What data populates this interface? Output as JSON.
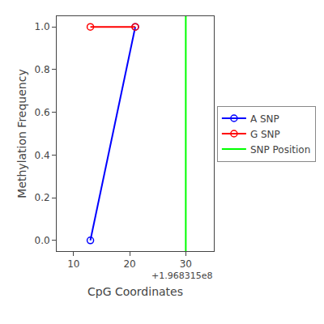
{
  "chart_data": {
    "type": "line",
    "xlabel": "CpG Coordinates",
    "ylabel": "Methylation Frequency",
    "x": [
      196831513,
      196831521
    ],
    "series": [
      {
        "name": "A SNP",
        "color": "blue",
        "values": [
          0.0,
          1.0
        ],
        "marker": "open_circle"
      },
      {
        "name": "G SNP",
        "color": "red",
        "values": [
          1.0,
          1.0
        ],
        "marker": "open_circle"
      },
      {
        "name": "SNP Position",
        "type": "vline",
        "color": "lime",
        "x": 196831530
      }
    ],
    "xlim": [
      196831507,
      196831535
    ],
    "ylim": [
      -0.05,
      1.05
    ],
    "xticks": [
      {
        "value": 196831510,
        "label": "10"
      },
      {
        "value": 196831520,
        "label": "20"
      },
      {
        "value": 196831530,
        "label": "30"
      }
    ],
    "yticks": [
      {
        "value": 0.0,
        "label": "0.0"
      },
      0.2,
      0.4,
      0.6,
      0.8,
      {
        "value": 1.0,
        "label": "1.0"
      }
    ],
    "annotations": [
      "+1.968315e8"
    ],
    "grid": false,
    "legend": "center right"
  }
}
